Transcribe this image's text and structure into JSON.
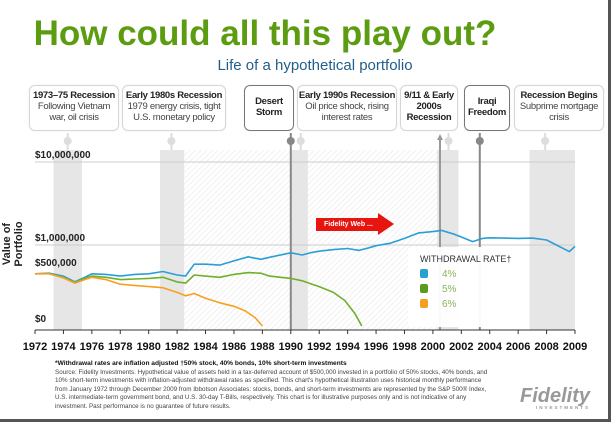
{
  "title": "How could all this play out?",
  "subtitle": "Life of a hypothetical portfolio",
  "callouts": [
    {
      "head": "1973–75 Recession",
      "body": "Following Vietnam war, oil crisis"
    },
    {
      "head": "Early 1980s Recession",
      "body": "1979 energy crisis, tight U.S. monetary policy"
    },
    {
      "head": "Desert Storm",
      "body": ""
    },
    {
      "head": "Early 1990s Recession",
      "body": "Oil price shock, rising interest rates"
    },
    {
      "head": "9/11 & Early 2000s Recession",
      "body": ""
    },
    {
      "head": "Iraqi Freedom",
      "body": ""
    },
    {
      "head": "Recession Begins",
      "body": "Subprime mortgage crisis"
    }
  ],
  "web_button": "Fidelity Web ...",
  "footnote": {
    "head": "*Withdrawal rates are inflation adjusted †50% stock, 40% bonds, 10% short-term investments",
    "body": "Source: Fidelity Investments. Hypothetical value of assets held in a tax-deferred account of $500,000 invested in a portfolio of 50% stocks, 40% bonds, and 10% short-term investments with inflation-adjusted withdrawal rates as specified. This chart's hypothetical illustration uses historical monthly performance from January 1972 through December 2009 from Ibbotson Associates: stocks, bonds, and short-term investments are represented by the S&P 500® Index, U.S. intermediate-term government bond, and U.S. 30-day T-Bills, respectively. This chart is for illustrative purposes only and is not indicative of any investment. Past performance is no guarantee of future results."
  },
  "logo": {
    "name": "Fidelity",
    "tag": "INVESTMENTS"
  },
  "colors": {
    "title": "#5b9c10",
    "subtitle": "#215f8a",
    "s4": "#2a9fd6",
    "s5": "#6fb02a",
    "s6": "#f7a020"
  },
  "chart_data": {
    "type": "line",
    "title": "How could all this play out?",
    "xlabel": "",
    "ylabel": "Value of Portfolio",
    "xlim": [
      1972,
      2009
    ],
    "x_ticks": [
      1972,
      1974,
      1976,
      1978,
      1980,
      1982,
      1984,
      1986,
      1988,
      1990,
      1992,
      1994,
      1996,
      1998,
      2000,
      2002,
      2004,
      2006,
      2008,
      2009
    ],
    "y_ticks": [
      {
        "value": 0,
        "label": "$0"
      },
      {
        "value": 500000,
        "label": "$500,000"
      },
      {
        "value": 1000000,
        "label": "$1,000,000"
      },
      {
        "value": 10000000,
        "label": "$10,000,000"
      }
    ],
    "legend": {
      "title": "WITHDRAWAL RATE†",
      "position": "right"
    },
    "recessions": [
      [
        1973.3,
        1975.3
      ],
      [
        1980.8,
        1982.5
      ],
      [
        1990.0,
        1991.2
      ],
      [
        2000.3,
        2001.8
      ],
      [
        2006.8,
        2009
      ]
    ],
    "events": [
      {
        "label": "Desert Storm",
        "x": 1990.0
      },
      {
        "label": "9/11",
        "x": 2000.5
      },
      {
        "label": "Iraqi Freedom",
        "x": 2003.3
      }
    ],
    "series": [
      {
        "name": "4%",
        "x": [
          1972,
          1973,
          1974,
          1974.8,
          1975.5,
          1976,
          1977,
          1978,
          1979,
          1980,
          1981,
          1982,
          1982.6,
          1983.2,
          1984,
          1985,
          1986,
          1987,
          1987.9,
          1988.5,
          1990,
          1990.8,
          1991.5,
          1992,
          1993,
          1994,
          1994.8,
          1995.5,
          1996,
          1997,
          1998,
          1999,
          2000,
          2000.6,
          2001.5,
          2002,
          2002.8,
          2003.5,
          2004,
          2005,
          2006,
          2007,
          2008,
          2008.8,
          2009
        ],
        "values": [
          450000,
          455000,
          430000,
          380000,
          420000,
          450000,
          445000,
          430000,
          445000,
          450000,
          470000,
          440000,
          430000,
          560000,
          560000,
          545000,
          620000,
          700000,
          650000,
          690000,
          790000,
          740000,
          800000,
          830000,
          870000,
          900000,
          850000,
          920000,
          980000,
          1050000,
          1200000,
          1400000,
          1450000,
          1500000,
          1350000,
          1250000,
          1100000,
          1200000,
          1220000,
          1210000,
          1200000,
          1210000,
          1150000,
          820000,
          960000
        ]
      },
      {
        "name": "5%",
        "x": [
          1972,
          1973,
          1974,
          1974.8,
          1975.5,
          1976,
          1977,
          1978,
          1979,
          1980,
          1981,
          1982,
          1982.6,
          1983.2,
          1984,
          1985,
          1986,
          1987,
          1987.9,
          1988.5,
          1990,
          1990.8,
          1991.5,
          1992,
          1993,
          1993.8,
          1994.5,
          1995
        ],
        "values": [
          450000,
          452000,
          420000,
          375000,
          410000,
          430000,
          420000,
          400000,
          405000,
          410000,
          420000,
          380000,
          370000,
          440000,
          430000,
          420000,
          445000,
          460000,
          455000,
          430000,
          410000,
          390000,
          360000,
          340000,
          290000,
          220000,
          110000,
          0
        ]
      },
      {
        "name": "6%",
        "x": [
          1972,
          1973,
          1974,
          1974.8,
          1975.5,
          1976,
          1977,
          1978,
          1979,
          1980,
          1981,
          1982,
          1982.6,
          1983.2,
          1984,
          1985,
          1986,
          1986.8,
          1987.5,
          1988
        ],
        "values": [
          450000,
          450000,
          415000,
          370000,
          400000,
          420000,
          400000,
          360000,
          350000,
          340000,
          330000,
          290000,
          260000,
          280000,
          240000,
          200000,
          170000,
          130000,
          70000,
          0
        ]
      }
    ]
  }
}
